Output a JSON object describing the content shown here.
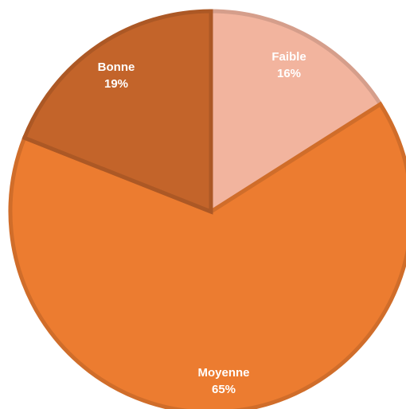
{
  "chart_data": {
    "type": "pie",
    "slices": [
      {
        "label": "Faible",
        "value": 16,
        "value_label": "16%",
        "color": "#F2B49E"
      },
      {
        "label": "Moyenne",
        "value": 65,
        "value_label": "65%",
        "color": "#EC7C30"
      },
      {
        "label": "Bonne",
        "value": 19,
        "value_label": "19%",
        "color": "#C3642A"
      }
    ],
    "start": "top",
    "direction": "clockwise",
    "legend": "none"
  }
}
